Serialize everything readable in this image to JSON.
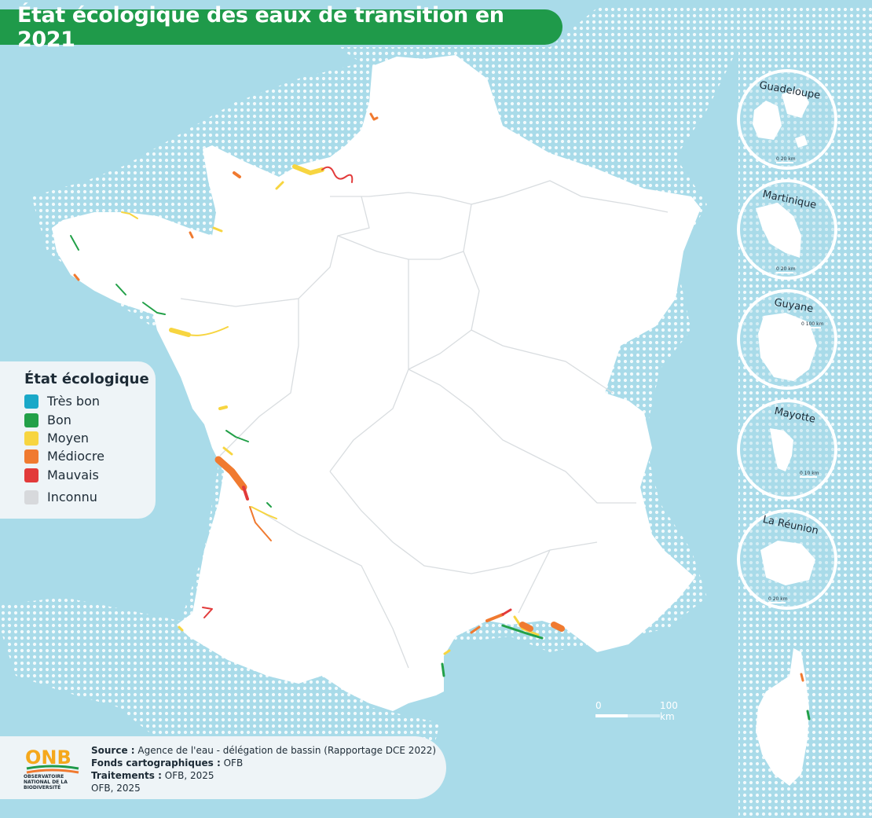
{
  "title": "État écologique des eaux de transition en 2021",
  "colors": {
    "sea": "#a9dbe9",
    "land": "#ffffff",
    "banner": "#1f9a4a",
    "dots": "#ffffff"
  },
  "legend": {
    "title": "État écologique",
    "items": [
      {
        "label": "Très bon",
        "color": "#1aa8c8"
      },
      {
        "label": "Bon",
        "color": "#22a048"
      },
      {
        "label": "Moyen",
        "color": "#f7d540"
      },
      {
        "label": "Médiocre",
        "color": "#f07a30"
      },
      {
        "label": "Mauvais",
        "color": "#e23a3a"
      },
      {
        "label": "Inconnu",
        "color": "#d7d9dc"
      }
    ]
  },
  "insets": [
    {
      "name": "Guadeloupe",
      "scale_label": "20 km"
    },
    {
      "name": "Martinique",
      "scale_label": "20 km"
    },
    {
      "name": "Guyane",
      "scale_label": "100 km"
    },
    {
      "name": "Mayotte",
      "scale_label": "10 km"
    },
    {
      "name": "La Réunion",
      "scale_label": "20 km"
    }
  ],
  "scale": {
    "zero": "0",
    "label": "100 km"
  },
  "footer": {
    "logo_text": "ONB",
    "logo_sub": "OBSERVATOIRE NATIONAL DE LA BIODIVERSITÉ",
    "source_label": "Source :",
    "source_value": "Agence de l'eau - délégation de bassin (Rapportage DCE 2022)",
    "fonds_label": "Fonds cartographiques :",
    "fonds_value": "OFB",
    "traitements_label": "Traitements :",
    "traitements_value": "OFB, 2025",
    "credit": "OFB, 2025"
  }
}
